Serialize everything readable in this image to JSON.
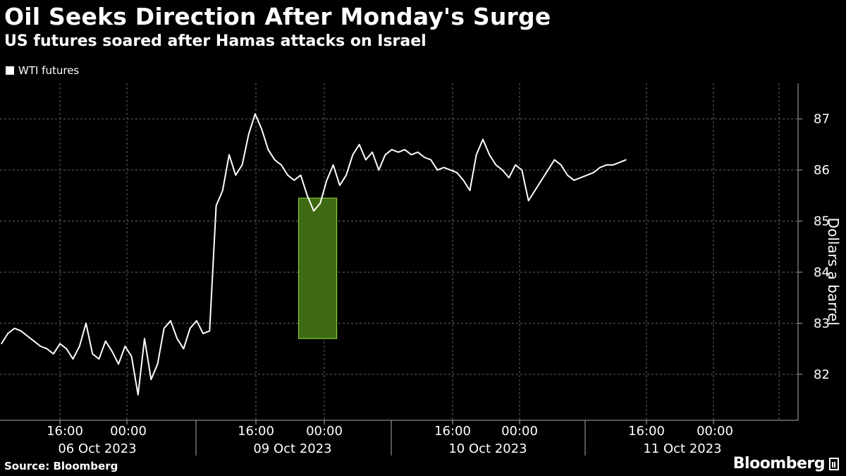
{
  "colors": {
    "background": "#000000",
    "line": "#ffffff",
    "highlight_fill": "#3d6a12",
    "highlight_stroke": "#9be23c",
    "highlight_line": "#b6f05a",
    "grid": "#666666"
  },
  "footer": {
    "source": "Source: Bloomberg",
    "brand": "Bloomberg"
  },
  "chart_data": {
    "type": "line",
    "title": "Oil Seeks Direction After Monday's Surge",
    "subtitle": "US futures soared after Hamas attacks on Israel",
    "ylabel": "Dollars a barrel",
    "ylim": [
      81.1,
      87.7
    ],
    "y_ticks": [
      82,
      83,
      84,
      85,
      86,
      87
    ],
    "grid": true,
    "legend": "top-left",
    "x_ticks": [
      {
        "label": "16:00",
        "date": "06 Oct 2023"
      },
      {
        "label": "00:00",
        "date": ""
      },
      {
        "label": "16:00",
        "date": "09 Oct 2023"
      },
      {
        "label": "00:00",
        "date": ""
      },
      {
        "label": "16:00",
        "date": "10 Oct 2023"
      },
      {
        "label": "00:00",
        "date": ""
      },
      {
        "label": "16:00",
        "date": "11 Oct 2023"
      },
      {
        "label": "00:00",
        "date": ""
      }
    ],
    "highlight": {
      "from_index": 46,
      "to_index": 51,
      "y_range": [
        82.7,
        85.45
      ]
    },
    "series": [
      {
        "name": "WTI futures",
        "values": [
          82.6,
          82.8,
          82.9,
          82.85,
          82.75,
          82.65,
          82.55,
          82.5,
          82.4,
          82.6,
          82.5,
          82.3,
          82.55,
          83.0,
          82.4,
          82.3,
          82.65,
          82.45,
          82.2,
          82.55,
          82.35,
          81.6,
          82.7,
          81.9,
          82.2,
          82.9,
          83.05,
          82.7,
          82.5,
          82.9,
          83.05,
          82.8,
          82.85,
          85.3,
          85.6,
          86.3,
          85.9,
          86.1,
          86.7,
          87.1,
          86.8,
          86.4,
          86.2,
          86.1,
          85.9,
          85.8,
          85.9,
          85.5,
          85.2,
          85.35,
          85.8,
          86.1,
          85.7,
          85.9,
          86.3,
          86.5,
          86.2,
          86.35,
          86.0,
          86.3,
          86.4,
          86.35,
          86.4,
          86.3,
          86.35,
          86.25,
          86.2,
          86.0,
          86.05,
          86.0,
          85.95,
          85.8,
          85.6,
          86.3,
          86.6,
          86.3,
          86.1,
          86.0,
          85.85,
          86.1,
          86.0,
          85.4,
          85.6,
          85.8,
          86.0,
          86.2,
          86.1,
          85.9,
          85.8,
          85.85,
          85.9,
          85.95,
          86.05,
          86.1,
          86.1,
          86.15,
          86.2
        ]
      }
    ]
  }
}
